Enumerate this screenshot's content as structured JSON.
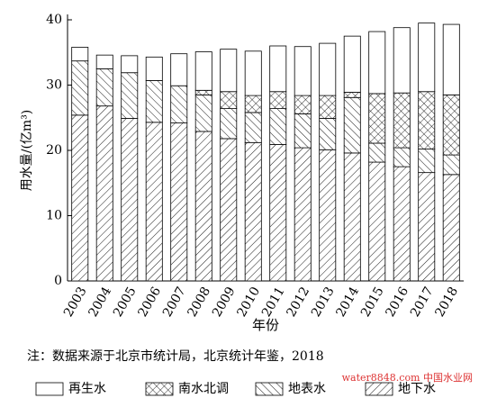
{
  "chart_data": {
    "type": "stacked-bar",
    "y_label": "用水量/(亿m³)",
    "x_label": "年份",
    "note": "注：数据来源于北京市统计局，北京统计年鉴，2018",
    "watermark": "water8848.com 中国水业网",
    "categories": [
      "2003",
      "2004",
      "2005",
      "2006",
      "2007",
      "2008",
      "2009",
      "2010",
      "2011",
      "2012",
      "2013",
      "2014",
      "2015",
      "2016",
      "2017",
      "2018"
    ],
    "series": [
      {
        "name": "地下水",
        "color": "#000000",
        "hatch": "diagonal",
        "values": [
          25.4,
          26.8,
          24.9,
          24.3,
          24.2,
          22.9,
          21.8,
          21.2,
          20.9,
          20.4,
          20.1,
          19.6,
          18.2,
          17.5,
          16.6,
          16.3
        ]
      },
      {
        "name": "地表水",
        "color": "#000000",
        "hatch": "back-diagonal",
        "values": [
          8.3,
          5.7,
          7.0,
          6.4,
          5.7,
          5.6,
          4.6,
          4.6,
          5.5,
          5.2,
          4.8,
          8.5,
          2.9,
          2.9,
          3.6,
          3.0
        ]
      },
      {
        "name": "南水北调",
        "color": "#000000",
        "hatch": "cross",
        "values": [
          null,
          null,
          null,
          null,
          null,
          0.7,
          2.6,
          2.6,
          2.6,
          2.8,
          3.5,
          0.8,
          7.6,
          8.4,
          8.8,
          9.2
        ]
      },
      {
        "name": "再生水",
        "color": "#000000",
        "hatch": "none",
        "values": [
          2.1,
          2.1,
          2.6,
          3.6,
          4.9,
          5.9,
          6.5,
          6.8,
          7.0,
          7.5,
          8.0,
          8.6,
          9.5,
          10.0,
          10.5,
          10.8
        ]
      }
    ],
    "ylim": [
      0,
      40
    ],
    "yticks": [
      0,
      10,
      20,
      30,
      40
    ]
  }
}
